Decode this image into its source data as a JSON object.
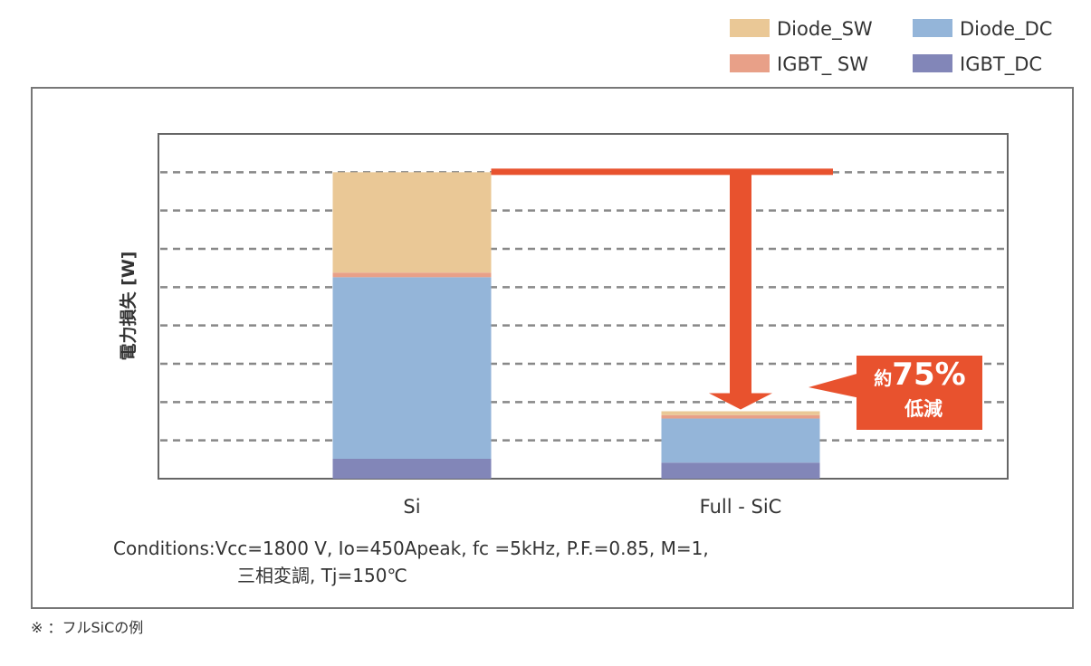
{
  "chart_data": {
    "type": "bar",
    "stacked": true,
    "categories": [
      "Si",
      "Full - SiC"
    ],
    "ylabel": "電力損失 [W]",
    "ylim": [
      0,
      9
    ],
    "grid": true,
    "legend_position": "top-right",
    "series": [
      {
        "name": "IGBT_DC",
        "color": "#8286b8",
        "values": [
          0.52,
          0.42
        ]
      },
      {
        "name": "Diode_DC",
        "color": "#94b5d9",
        "values": [
          4.74,
          1.15
        ]
      },
      {
        "name": "IGBT_ SW",
        "color": "#e8a088",
        "values": [
          0.12,
          0.09
        ]
      },
      {
        "name": "Diode_SW",
        "color": "#eac896",
        "values": [
          2.62,
          0.1
        ]
      }
    ],
    "legend_order": [
      "Diode_SW",
      "Diode_DC",
      "IGBT_ SW",
      "IGBT_DC"
    ],
    "annotation": {
      "line1_prefix": "約",
      "line1_value": "75%",
      "line2": "低減",
      "color": "#e8522e"
    },
    "conditions_line1": "Conditions:Vcc=1800 V, Io=450Apeak, fc =5kHz, P.F.=0.85, M=1,",
    "conditions_line2": "三相変調, Tj=150℃"
  },
  "footnote": "※ ：フルSiCの例"
}
